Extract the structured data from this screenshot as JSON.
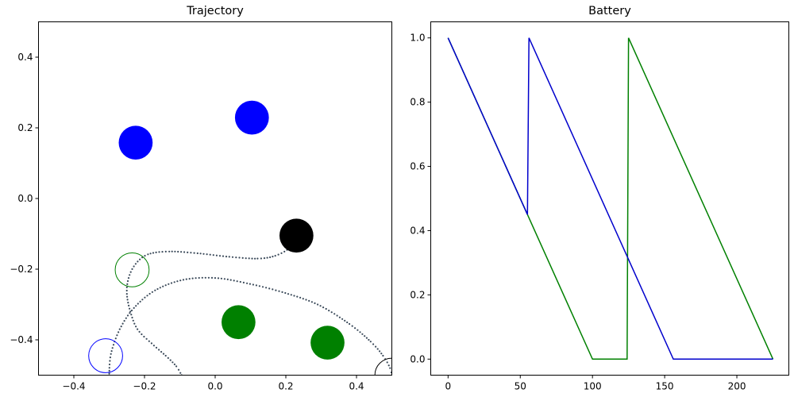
{
  "chart_data": [
    {
      "type": "scatter",
      "title": "Trajectory",
      "xlim": [
        -0.5,
        0.5
      ],
      "ylim": [
        -0.5,
        0.5
      ],
      "xticks": [
        -0.4,
        -0.2,
        0.0,
        0.2,
        0.4
      ],
      "yticks": [
        -0.4,
        -0.2,
        0.0,
        0.2,
        0.4
      ],
      "xtick_labels": [
        "−0.4",
        "−0.2",
        "0.0",
        "0.2",
        "0.4"
      ],
      "ytick_labels": [
        "−0.4",
        "−0.2",
        "0.0",
        "0.2",
        "0.4"
      ],
      "grid": false,
      "circles": [
        {
          "x": -0.225,
          "y": 0.158,
          "r": 0.048,
          "fill": "#0000ff",
          "stroke": "#0000ff",
          "filled": true
        },
        {
          "x": 0.104,
          "y": 0.229,
          "r": 0.048,
          "fill": "#0000ff",
          "stroke": "#0000ff",
          "filled": true
        },
        {
          "x": 0.23,
          "y": -0.105,
          "r": 0.048,
          "fill": "#000000",
          "stroke": "#000000",
          "filled": true
        },
        {
          "x": 0.066,
          "y": -0.35,
          "r": 0.048,
          "fill": "#008000",
          "stroke": "#008000",
          "filled": true
        },
        {
          "x": 0.318,
          "y": -0.408,
          "r": 0.048,
          "fill": "#008000",
          "stroke": "#008000",
          "filled": true
        },
        {
          "x": -0.235,
          "y": -0.202,
          "r": 0.048,
          "fill": "none",
          "stroke": "#008000",
          "filled": false
        },
        {
          "x": -0.31,
          "y": -0.445,
          "r": 0.048,
          "fill": "none",
          "stroke": "#0000ff",
          "filled": false
        },
        {
          "x": 0.5,
          "y": -0.5,
          "r": 0.048,
          "fill": "none",
          "stroke": "#000000",
          "filled": false
        }
      ],
      "trajectories": [
        {
          "color": "#3b4a5a",
          "points": [
            [
              0.23,
              -0.105
            ],
            [
              0.21,
              -0.14
            ],
            [
              0.17,
              -0.162
            ],
            [
              0.12,
              -0.17
            ],
            [
              0.04,
              -0.165
            ],
            [
              -0.05,
              -0.155
            ],
            [
              -0.13,
              -0.15
            ],
            [
              -0.19,
              -0.158
            ],
            [
              -0.225,
              -0.185
            ],
            [
              -0.245,
              -0.225
            ],
            [
              -0.25,
              -0.27
            ],
            [
              -0.24,
              -0.32
            ],
            [
              -0.22,
              -0.37
            ],
            [
              -0.18,
              -0.41
            ],
            [
              -0.14,
              -0.445
            ],
            [
              -0.11,
              -0.475
            ],
            [
              -0.095,
              -0.5
            ]
          ]
        },
        {
          "color": "#3b4a5a",
          "points": [
            [
              -0.3,
              -0.5
            ],
            [
              -0.295,
              -0.44
            ],
            [
              -0.27,
              -0.37
            ],
            [
              -0.23,
              -0.31
            ],
            [
              -0.17,
              -0.26
            ],
            [
              -0.09,
              -0.23
            ],
            [
              0.0,
              -0.225
            ],
            [
              0.09,
              -0.24
            ],
            [
              0.19,
              -0.265
            ],
            [
              0.29,
              -0.3
            ],
            [
              0.38,
              -0.355
            ],
            [
              0.44,
              -0.405
            ],
            [
              0.475,
              -0.445
            ],
            [
              0.495,
              -0.48
            ],
            [
              0.5,
              -0.5
            ]
          ]
        }
      ]
    },
    {
      "type": "line",
      "title": "Battery",
      "xlim": [
        -12,
        236
      ],
      "ylim": [
        -0.05,
        1.05
      ],
      "xticks": [
        0,
        50,
        100,
        150,
        200
      ],
      "yticks": [
        0.0,
        0.2,
        0.4,
        0.6,
        0.8,
        1.0
      ],
      "xtick_labels": [
        "0",
        "50",
        "100",
        "150",
        "200"
      ],
      "ytick_labels": [
        "0.0",
        "0.2",
        "0.4",
        "0.6",
        "0.8",
        "1.0"
      ],
      "grid": false,
      "series": [
        {
          "color": "#008000",
          "x": [
            0,
            55,
            100,
            124,
            125,
            225
          ],
          "y": [
            1.0,
            0.45,
            0.0,
            0.0,
            1.0,
            0.0
          ]
        },
        {
          "color": "#0000cc",
          "x": [
            0,
            55,
            56,
            156,
            225
          ],
          "y": [
            1.0,
            0.45,
            1.0,
            0.0,
            0.0
          ]
        }
      ]
    }
  ]
}
